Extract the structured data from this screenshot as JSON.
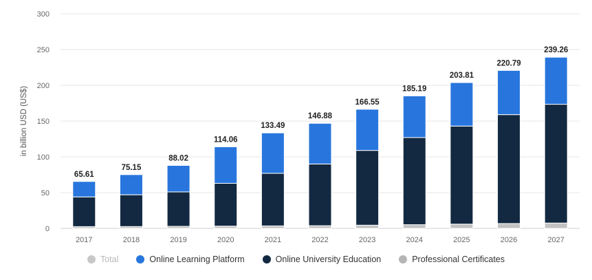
{
  "chart_data": {
    "type": "bar",
    "stacked": true,
    "categories": [
      "2017",
      "2018",
      "2019",
      "2020",
      "2021",
      "2022",
      "2023",
      "2024",
      "2025",
      "2026",
      "2027"
    ],
    "totals": [
      "65.61",
      "75.15",
      "88.02",
      "114.06",
      "133.49",
      "146.88",
      "166.55",
      "185.19",
      "203.81",
      "220.79",
      "239.26"
    ],
    "series": [
      {
        "name": "Professional Certificates",
        "color": "#c2c2c2",
        "values": [
          2.5,
          2.6,
          2.9,
          3.2,
          3.5,
          3.8,
          4.5,
          5.2,
          6.0,
          6.8,
          7.5
        ]
      },
      {
        "name": "Online University Education",
        "color": "#122941",
        "values": [
          41.5,
          44.4,
          48.1,
          59.8,
          73.5,
          86.2,
          104.5,
          121.8,
          137.0,
          152.2,
          166.0
        ]
      },
      {
        "name": "Online Learning Platform",
        "color": "#2876dd",
        "values": [
          21.61,
          28.15,
          37.02,
          51.06,
          56.49,
          56.88,
          57.55,
          58.19,
          60.81,
          61.79,
          65.76
        ]
      }
    ],
    "ylabel": "in billion USD (US$)",
    "ylim": [
      0,
      300
    ],
    "yticks": [
      "0",
      "50",
      "100",
      "150",
      "200",
      "250",
      "300"
    ],
    "grid": true,
    "legend_position": "bottom"
  },
  "legend": [
    {
      "label": "Total",
      "color": "#c8c8c8",
      "hidden": true
    },
    {
      "label": "Online Learning Platform",
      "color": "#2876dd",
      "hidden": false
    },
    {
      "label": "Online University Education",
      "color": "#122941",
      "hidden": false
    },
    {
      "label": "Professional Certificates",
      "color": "#b5b5b5",
      "hidden": false
    }
  ]
}
